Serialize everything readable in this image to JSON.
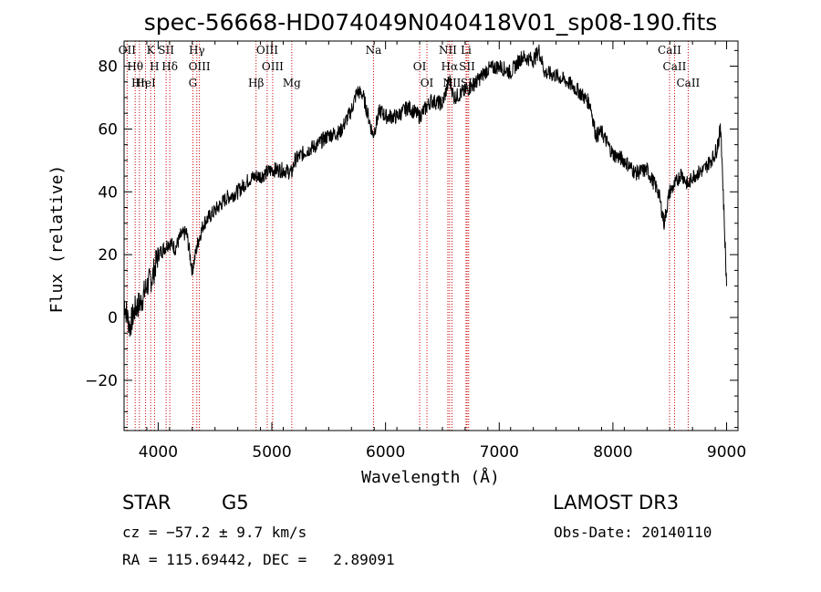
{
  "chart_data": {
    "type": "line",
    "title": "spec-56668-HD074049N040418V01_sp08-190.fits",
    "xlabel": "Wavelength (Å)",
    "ylabel": "Flux (relative)",
    "xlim": [
      3700,
      9100
    ],
    "ylim": [
      -36,
      88
    ],
    "xticks": [
      4000,
      5000,
      6000,
      7000,
      8000,
      9000
    ],
    "yticks": [
      -20,
      0,
      20,
      40,
      60,
      80
    ],
    "xtick_labels": [
      "4000",
      "5000",
      "6000",
      "7000",
      "8000",
      "9000"
    ],
    "ytick_labels": [
      "−20",
      "0",
      "20",
      "40",
      "60",
      "80"
    ],
    "line_color": "#000000",
    "marker_color": "#cc0000",
    "series": [
      {
        "name": "flux",
        "x": [
          3700,
          3750,
          3800,
          3850,
          3900,
          3950,
          4000,
          4050,
          4100,
          4150,
          4200,
          4250,
          4300,
          4350,
          4400,
          4500,
          4600,
          4700,
          4800,
          4861,
          4900,
          5000,
          5100,
          5175,
          5200,
          5300,
          5400,
          5500,
          5600,
          5700,
          5750,
          5800,
          5890,
          5950,
          6000,
          6100,
          6200,
          6300,
          6400,
          6500,
          6563,
          6600,
          6700,
          6800,
          6900,
          7000,
          7100,
          7200,
          7300,
          7350,
          7400,
          7500,
          7600,
          7700,
          7800,
          7850,
          7900,
          8000,
          8100,
          8200,
          8300,
          8400,
          8450,
          8498,
          8542,
          8600,
          8662,
          8700,
          8800,
          8900,
          8950,
          9000
        ],
        "values": [
          5,
          -3,
          3,
          5,
          10,
          13,
          20,
          22,
          24,
          22,
          26,
          27,
          15,
          24,
          30,
          34,
          38,
          40,
          44,
          45,
          45,
          47,
          47,
          46,
          50,
          53,
          55,
          58,
          59,
          66,
          72,
          71,
          58,
          66,
          64,
          64,
          67,
          64,
          69,
          68,
          76,
          70,
          72,
          75,
          79,
          80,
          78,
          83,
          82,
          85,
          78,
          77,
          75,
          72,
          68,
          58,
          59,
          52,
          50,
          46,
          47,
          40,
          30,
          40,
          42,
          46,
          42,
          45,
          47,
          52,
          60,
          10
        ]
      }
    ],
    "spectral_lines": [
      {
        "name": "OII",
        "x": 3727
      },
      {
        "name": "Hθ",
        "x": 3798
      },
      {
        "name": "HeI",
        "x": 3889
      },
      {
        "name": "K",
        "x": 3934
      },
      {
        "name": "H",
        "x": 3968
      },
      {
        "name": "Hη",
        "x": 3835
      },
      {
        "name": "SII",
        "x": 4070
      },
      {
        "name": "Hδ",
        "x": 4102
      },
      {
        "name": "G",
        "x": 4305
      },
      {
        "name": "Hγ",
        "x": 4340
      },
      {
        "name": "OIII",
        "x": 4363
      },
      {
        "name": "Hβ",
        "x": 4861
      },
      {
        "name": "OIII",
        "x": 4959
      },
      {
        "name": "OIII",
        "x": 5007
      },
      {
        "name": "Mg",
        "x": 5175
      },
      {
        "name": "Na",
        "x": 5894
      },
      {
        "name": "OI",
        "x": 6300
      },
      {
        "name": "OI",
        "x": 6364
      },
      {
        "name": "NII",
        "x": 6548
      },
      {
        "name": "Hα",
        "x": 6563
      },
      {
        "name": "NII",
        "x": 6584
      },
      {
        "name": "Li",
        "x": 6708
      },
      {
        "name": "SII",
        "x": 6717
      },
      {
        "name": "SII",
        "x": 6731
      },
      {
        "name": "CaII",
        "x": 8498
      },
      {
        "name": "CaII",
        "x": 8542
      },
      {
        "name": "CaII",
        "x": 8662
      }
    ]
  },
  "info": {
    "object_class": "STAR",
    "subclass": "G5",
    "survey": "LAMOST DR3",
    "cz": "cz = −57.2 ± 9.7 km/s",
    "obs_date": "Obs-Date: 20140110",
    "radec": "RA = 115.69442, DEC =   2.89091"
  }
}
